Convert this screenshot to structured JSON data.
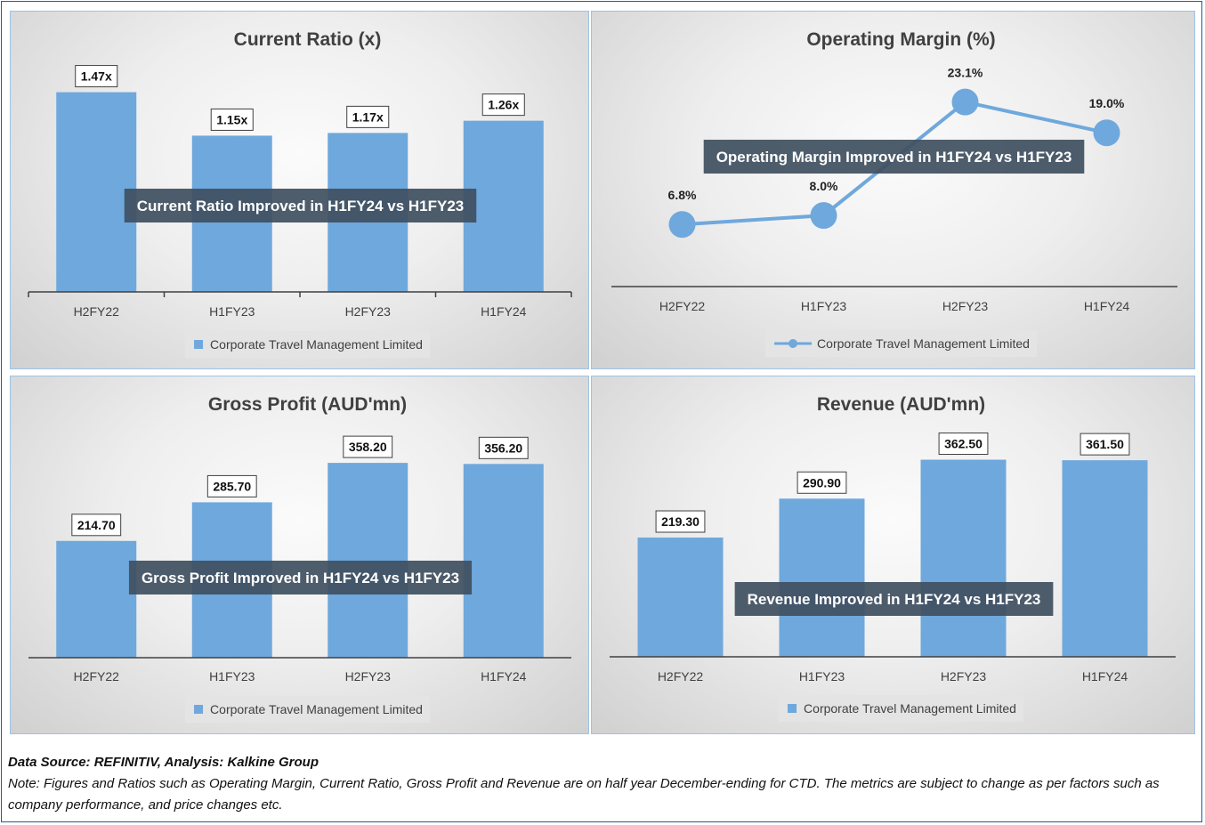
{
  "footer": {
    "source": "Data Source: REFINITIV, Analysis: Kalkine Group",
    "note": "Note: Figures and Ratios such as Operating Margin, Current Ratio, Gross Profit and Revenue are on half year December-ending for CTD. The metrics are subject to change as per factors such as company performance, and price changes etc."
  },
  "colors": {
    "bar": "#6fa8dc",
    "annotation_bg": "#3f4f60",
    "axis": "#404040"
  },
  "chart_data": [
    {
      "id": "cr",
      "type": "bar",
      "title": "Current Ratio (x)",
      "categories": [
        "H2FY22",
        "H1FY23",
        "H2FY23",
        "H1FY24"
      ],
      "series": [
        {
          "name": "Corporate Travel Management Limited",
          "values": [
            1.47,
            1.15,
            1.17,
            1.26
          ]
        }
      ],
      "data_labels": [
        "1.47x",
        "1.15x",
        "1.17x",
        "1.26x"
      ],
      "annotation": "Current Ratio Improved in H1FY24 vs H1FY23",
      "ylim": [
        0,
        1.5
      ],
      "legend": "bottom",
      "grid": false
    },
    {
      "id": "om",
      "type": "line",
      "title": "Operating Margin (%)",
      "categories": [
        "H2FY22",
        "H1FY23",
        "H2FY23",
        "H1FY24"
      ],
      "series": [
        {
          "name": "Corporate Travel Management Limited",
          "values": [
            6.8,
            8.0,
            23.1,
            19.0
          ]
        }
      ],
      "data_labels": [
        "6.8%",
        "8.0%",
        "23.1%",
        "19.0%"
      ],
      "annotation": "Operating Margin Improved in H1FY24 vs H1FY23",
      "ylim": [
        0,
        24
      ],
      "legend": "bottom",
      "grid": false
    },
    {
      "id": "gp",
      "type": "bar",
      "title": "Gross Profit (AUD'mn)",
      "categories": [
        "H2FY22",
        "H1FY23",
        "H2FY23",
        "H1FY24"
      ],
      "series": [
        {
          "name": "Corporate Travel Management Limited",
          "values": [
            214.7,
            285.7,
            358.2,
            356.2
          ]
        }
      ],
      "data_labels": [
        "214.70",
        "285.70",
        "358.20",
        "356.20"
      ],
      "annotation": "Gross Profit Improved in H1FY24 vs H1FY23",
      "ylim": [
        0,
        360
      ],
      "legend": "bottom",
      "grid": false
    },
    {
      "id": "rv",
      "type": "bar",
      "title": "Revenue (AUD'mn)",
      "categories": [
        "H2FY22",
        "H1FY23",
        "H2FY23",
        "H1FY24"
      ],
      "series": [
        {
          "name": "Corporate Travel Management Limited",
          "values": [
            219.3,
            290.9,
            362.5,
            361.5
          ]
        }
      ],
      "data_labels": [
        "219.30",
        "290.90",
        "362.50",
        "361.50"
      ],
      "annotation": "Revenue Improved in H1FY24 vs H1FY23",
      "ylim": [
        0,
        365
      ],
      "legend": "bottom",
      "grid": false
    }
  ]
}
